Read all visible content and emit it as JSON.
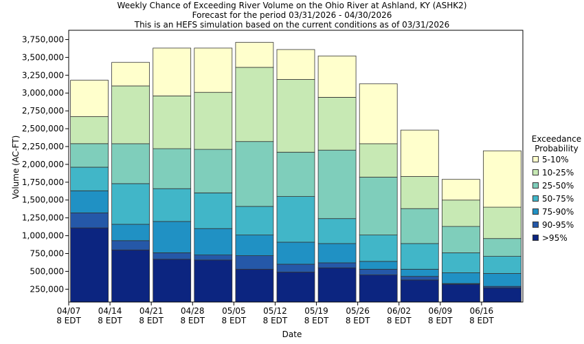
{
  "title_lines": [
    "Weekly Chance of Exceeding River Volume on the Ohio River at Ashland, KY (ASHK2)",
    "Forecast for the period 03/31/2026 - 04/30/2026",
    "This is an HEFS simulation based on the current conditions as of 03/31/2026"
  ],
  "chart_data": {
    "type": "bar",
    "stacked": true,
    "title": "Weekly Chance of Exceeding River Volume on the Ohio River at Ashland, KY (ASHK2)",
    "subtitle": "Forecast for the period 03/31/2026 - 04/30/2026",
    "xlabel": "Date",
    "ylabel": "Volume (AC-FT)",
    "ylim": [
      70000,
      3880000
    ],
    "yticks": [
      "250,000",
      "500,000",
      "750,000",
      "1,000,000",
      "1,250,000",
      "1,500,000",
      "1,750,000",
      "2,000,000",
      "2,250,000",
      "2,500,000",
      "2,750,000",
      "3,000,000",
      "3,250,000",
      "3,500,000",
      "3,750,000"
    ],
    "ytick_values": [
      250000,
      500000,
      750000,
      1000000,
      1250000,
      1500000,
      1750000,
      2000000,
      2250000,
      2500000,
      2750000,
      3000000,
      3250000,
      3500000,
      3750000
    ],
    "xticks": [
      {
        "date": "04/07",
        "time": "8 EDT"
      },
      {
        "date": "04/14",
        "time": "8 EDT"
      },
      {
        "date": "04/21",
        "time": "8 EDT"
      },
      {
        "date": "04/28",
        "time": "8 EDT"
      },
      {
        "date": "05/05",
        "time": "8 EDT"
      },
      {
        "date": "05/12",
        "time": "8 EDT"
      },
      {
        "date": "05/19",
        "time": "8 EDT"
      },
      {
        "date": "05/26",
        "time": "8 EDT"
      },
      {
        "date": "06/02",
        "time": "8 EDT"
      },
      {
        "date": "06/09",
        "time": "8 EDT"
      },
      {
        "date": "06/16",
        "time": "8 EDT"
      }
    ],
    "grid": false,
    "legend_title": "Exceedance Probability",
    "legend_position": "right",
    "bands": [
      {
        "name": ">95%",
        "color": "#0c2580"
      },
      {
        "name": "90-95%",
        "color": "#2558a8"
      },
      {
        "name": "75-90%",
        "color": "#2091c4"
      },
      {
        "name": "50-75%",
        "color": "#41b6c8"
      },
      {
        "name": "25-50%",
        "color": "#7fcebb"
      },
      {
        "name": "10-25%",
        "color": "#c7e9b4"
      },
      {
        "name": "5-10%",
        "color": "#ffffcc"
      }
    ],
    "weeks": [
      [
        1110000,
        1320000,
        1630000,
        1960000,
        2290000,
        2670000,
        3180000
      ],
      [
        800000,
        930000,
        1160000,
        1730000,
        2290000,
        3100000,
        3430000
      ],
      [
        670000,
        760000,
        1200000,
        1660000,
        2220000,
        2960000,
        3630000
      ],
      [
        660000,
        730000,
        1100000,
        1600000,
        2210000,
        3010000,
        3630000
      ],
      [
        530000,
        720000,
        1010000,
        1410000,
        2320000,
        3360000,
        3710000
      ],
      [
        490000,
        600000,
        910000,
        1550000,
        2170000,
        3190000,
        3610000
      ],
      [
        550000,
        620000,
        890000,
        1240000,
        2200000,
        2940000,
        3520000
      ],
      [
        450000,
        530000,
        640000,
        1010000,
        1820000,
        2290000,
        3130000
      ],
      [
        380000,
        430000,
        530000,
        890000,
        1380000,
        1830000,
        2480000
      ],
      [
        320000,
        330000,
        480000,
        760000,
        1130000,
        1500000,
        1790000
      ],
      [
        270000,
        290000,
        470000,
        710000,
        960000,
        1400000,
        2190000
      ]
    ],
    "legend_order": [
      "5-10%",
      "10-25%",
      "25-50%",
      "50-75%",
      "75-90%",
      "90-95%",
      ">95%"
    ]
  }
}
